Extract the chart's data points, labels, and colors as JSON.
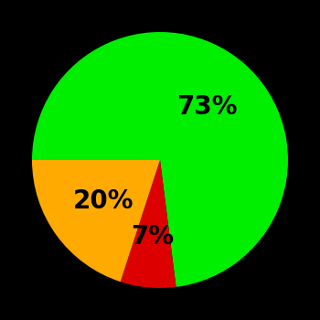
{
  "slices": [
    73,
    7,
    20
  ],
  "colors": [
    "#00ee00",
    "#dd0000",
    "#ffaa00"
  ],
  "labels": [
    "73%",
    "7%",
    "20%"
  ],
  "background_color": "#000000",
  "label_fontsize": 20,
  "label_fontweight": "bold",
  "label_color": "#000000",
  "startangle": 180,
  "figsize": [
    3.5,
    3.5
  ],
  "dpi": 100,
  "label_radii": [
    0.55,
    0.6,
    0.55
  ]
}
